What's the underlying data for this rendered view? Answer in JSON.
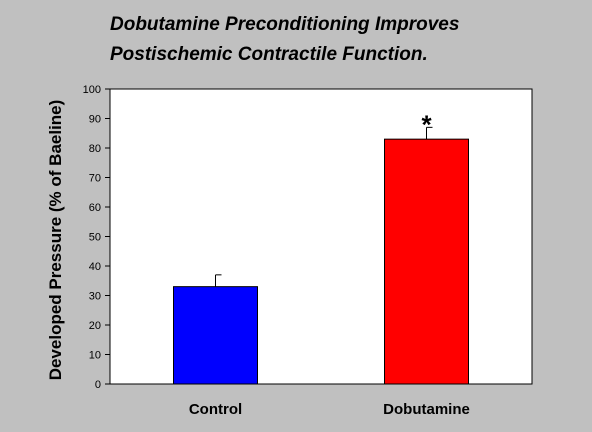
{
  "chart_data": {
    "type": "bar",
    "title_lines": [
      "Dobutamine Preconditioning Improves",
      "Postischemic Contractile Function."
    ],
    "xlabel": "",
    "ylabel": "Developed Pressure (% of Baeline)",
    "categories": [
      "Control",
      "Dobutamine"
    ],
    "values": [
      33,
      83
    ],
    "error": [
      4,
      4
    ],
    "annotations": [
      "",
      "*"
    ],
    "ylim": [
      0,
      100
    ],
    "yticks": [
      0,
      10,
      20,
      30,
      40,
      50,
      60,
      70,
      80,
      90,
      100
    ],
    "grid": false,
    "legend": "none",
    "colors": {
      "background": "#c0c0c0",
      "plot_area": "#ffffff",
      "bars": [
        "#0000ff",
        "#ff0000"
      ]
    }
  }
}
